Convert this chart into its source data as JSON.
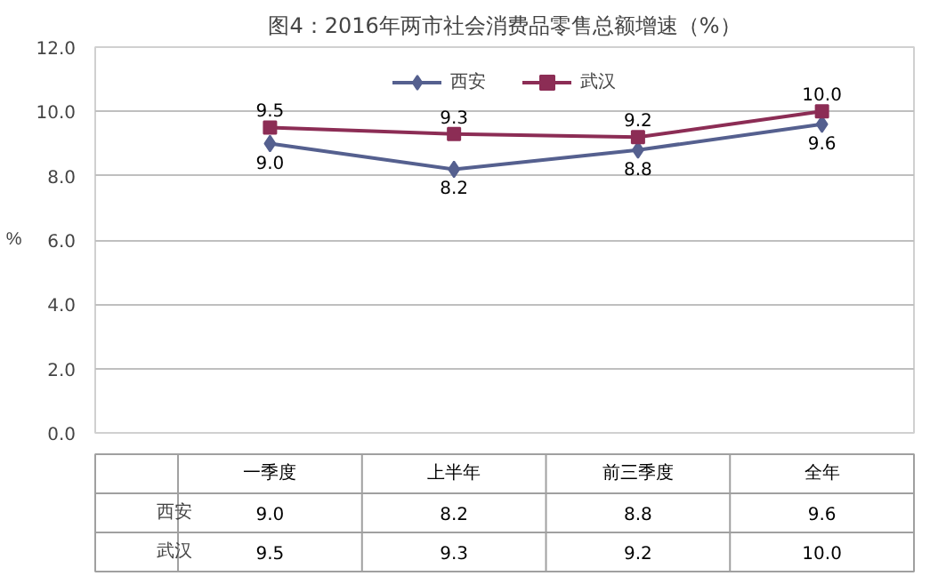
{
  "chart_data": {
    "type": "line",
    "title": "图4：2016年两市社会消费品零售总额增速（%）",
    "ylabel": "%",
    "categories": [
      "一季度",
      "上半年",
      "前三季度",
      "全年"
    ],
    "series": [
      {
        "name": "西安",
        "color": "#55608f",
        "marker": "diamond",
        "values": [
          9.0,
          8.2,
          8.8,
          9.6
        ],
        "value_labels": [
          "9.0",
          "8.2",
          "8.8",
          "9.6"
        ]
      },
      {
        "name": "武汉",
        "color": "#8c2d55",
        "marker": "square",
        "values": [
          9.5,
          9.3,
          9.2,
          10.0
        ],
        "value_labels": [
          "9.5",
          "9.3",
          "9.2",
          "10.0"
        ]
      }
    ],
    "ylim": [
      0,
      12
    ],
    "yticks": [
      {
        "value": 0,
        "label": "0.0"
      },
      {
        "value": 2,
        "label": "2.0"
      },
      {
        "value": 4,
        "label": "4.0"
      },
      {
        "value": 6,
        "label": "6.0"
      },
      {
        "value": 8,
        "label": "8.0"
      },
      {
        "value": 10,
        "label": "10.0"
      },
      {
        "value": 12,
        "label": "12.0"
      }
    ],
    "grid": "y",
    "legend": "top",
    "data_labels": true
  }
}
